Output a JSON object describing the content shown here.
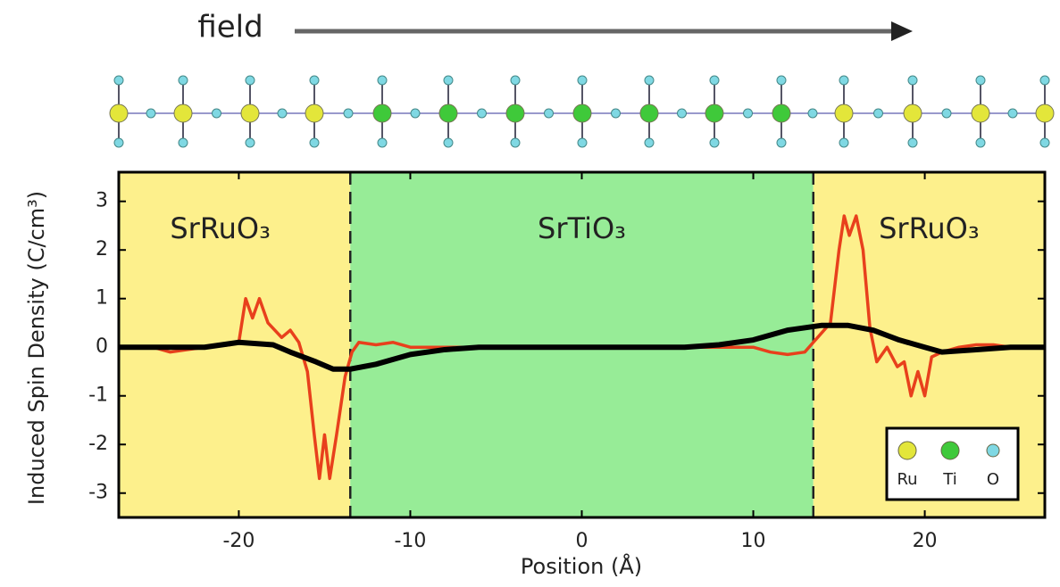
{
  "chart_data": {
    "type": "line",
    "annotation": "field",
    "x_label": "Position (Å)",
    "y_label": "Induced Spin Density (C/cm³)",
    "xlim": [
      -27,
      27
    ],
    "ylim": [
      -3.5,
      3.6
    ],
    "xticks": [
      -20,
      -10,
      0,
      10,
      20
    ],
    "yticks": [
      -3,
      -2,
      -1,
      0,
      1,
      2,
      3
    ],
    "regions": [
      {
        "label": "SrRuO₃",
        "xlim": [
          -27,
          -13.5
        ],
        "color": "#fdf08c"
      },
      {
        "label": "SrTiO₃",
        "xlim": [
          -13.5,
          13.5
        ],
        "color": "#97ec97"
      },
      {
        "label": "SrRuO₃",
        "xlim": [
          13.5,
          27
        ],
        "color": "#fdf08c"
      }
    ],
    "legend": [
      {
        "name": "Ru",
        "color": "#e3e63a"
      },
      {
        "name": "Ti",
        "color": "#3fc93a"
      },
      {
        "name": "O",
        "color": "#7fd8e3"
      }
    ],
    "series": [
      {
        "color": "#e8401c",
        "x": [
          -27,
          -25,
          -24,
          -23,
          -22,
          -20.5,
          -20,
          -19.6,
          -19.2,
          -18.8,
          -18.3,
          -17.5,
          -17,
          -16.5,
          -16,
          -15.6,
          -15.3,
          -15,
          -14.7,
          -14.3,
          -13.8,
          -13.4,
          -13,
          -12,
          -11,
          -10,
          -9,
          0,
          9,
          10,
          11,
          12,
          13,
          13.5,
          14.5,
          15,
          15.3,
          15.6,
          16,
          16.4,
          16.8,
          17.2,
          17.8,
          18.4,
          18.8,
          19.2,
          19.6,
          20,
          20.4,
          21,
          22,
          23,
          24,
          25,
          27
        ],
        "values": [
          0,
          0,
          -0.1,
          -0.05,
          0,
          0.05,
          0.1,
          1.0,
          0.6,
          1.0,
          0.5,
          0.2,
          0.35,
          0.1,
          -0.5,
          -1.8,
          -2.7,
          -1.8,
          -2.7,
          -1.8,
          -0.6,
          -0.1,
          0.1,
          0.05,
          0.1,
          0,
          0,
          0,
          0,
          0,
          -0.1,
          -0.15,
          -0.1,
          0.1,
          0.5,
          2.0,
          2.7,
          2.3,
          2.7,
          2.0,
          0.4,
          -0.3,
          0,
          -0.4,
          -0.3,
          -1.0,
          -0.5,
          -1.0,
          -0.2,
          -0.1,
          0,
          0.05,
          0.05,
          0,
          0
        ]
      },
      {
        "color": "#000000",
        "x": [
          -27,
          -22,
          -20,
          -18,
          -17,
          -15.5,
          -14.5,
          -13.5,
          -12,
          -10,
          -8,
          -6,
          0,
          6,
          8,
          10,
          12,
          14,
          15.5,
          17,
          18.5,
          20,
          21,
          23,
          25,
          27
        ],
        "values": [
          0,
          0,
          0.1,
          0.05,
          -0.1,
          -0.3,
          -0.45,
          -0.45,
          -0.35,
          -0.15,
          -0.05,
          0,
          0,
          0,
          0.05,
          0.15,
          0.35,
          0.45,
          0.45,
          0.35,
          0.15,
          0,
          -0.1,
          -0.05,
          0,
          0
        ]
      }
    ]
  }
}
